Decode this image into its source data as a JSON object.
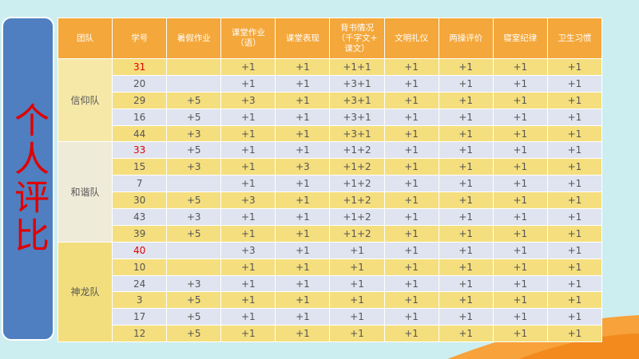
{
  "side_title": "个人评比",
  "table": {
    "headers": [
      "团队",
      "学号",
      "暑假作业",
      "课堂作业\n（语）",
      "课堂表现",
      "背书情况\n（千字文+\n课文）",
      "文明礼仪",
      "两操评价",
      "寝室纪律",
      "卫生习惯"
    ],
    "groups": [
      {
        "team": "信仰队",
        "rows": [
          [
            31,
            null,
            "+1",
            "+1",
            "+1+1",
            "+1",
            "+1",
            "+1",
            "+1"
          ],
          [
            20,
            null,
            "+1",
            "+1",
            "+3+1",
            "+1",
            "+1",
            "+1",
            "+1"
          ],
          [
            29,
            "+5",
            "+3",
            "+1",
            "+3+1",
            "+1",
            "+1",
            "+1",
            "+1"
          ],
          [
            16,
            "+5",
            "+1",
            "+1",
            "+3+1",
            "+1",
            "+1",
            "+1",
            "+1"
          ],
          [
            44,
            "+3",
            "+1",
            "+1",
            "+3+1",
            "+1",
            "+1",
            "+1",
            "+1"
          ]
        ]
      },
      {
        "team": "和谐队",
        "rows": [
          [
            33,
            "+5",
            "+1",
            "+1",
            "+1+2",
            "+1",
            "+1",
            "+1",
            "+1"
          ],
          [
            15,
            "+3",
            "+1",
            "+3",
            "+1+2",
            "+1",
            "+1",
            "+1",
            "+1"
          ],
          [
            7,
            null,
            "+1",
            "+1",
            "+1+2",
            "+1",
            "+1",
            "+1",
            "+1"
          ],
          [
            30,
            "+5",
            "+3",
            "+1",
            "+1+2",
            "+1",
            "+1",
            "+1",
            "+1"
          ],
          [
            43,
            "+3",
            "+1",
            "+1",
            "+1+2",
            "+1",
            "+1",
            "+1",
            "+1"
          ],
          [
            39,
            "+5",
            "+1",
            "+1",
            "+1+2",
            "+1",
            "+1",
            "+1",
            "+1"
          ]
        ]
      },
      {
        "team": "神龙队",
        "rows": [
          [
            40,
            null,
            "+3",
            "+1",
            "+1",
            "+1",
            "+1",
            "+1",
            "+1"
          ],
          [
            10,
            null,
            "+1",
            "+1",
            "+1",
            "+1",
            "+1",
            "+1",
            "+1"
          ],
          [
            24,
            "+3",
            "+1",
            "+1",
            "+1",
            "+1",
            "+1",
            "+1",
            "+1"
          ],
          [
            3,
            "+5",
            "+1",
            "+1",
            "+1",
            "+1",
            "+1",
            "+1",
            "+1"
          ],
          [
            17,
            "+5",
            "+1",
            "+1",
            "+1",
            "+1",
            "+1",
            "+1",
            "+1"
          ],
          [
            12,
            "+5",
            "+1",
            "+1",
            "+1",
            "+1",
            "+1",
            "+1",
            "+1"
          ]
        ]
      }
    ]
  }
}
